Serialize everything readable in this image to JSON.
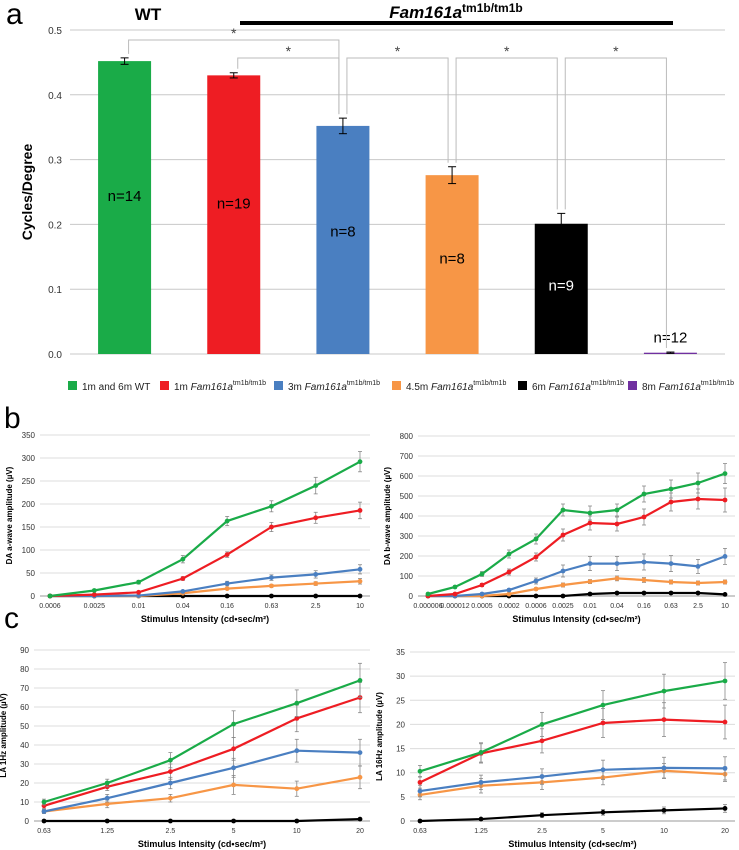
{
  "panel_labels": {
    "a": "a",
    "b": "b",
    "c": "c"
  },
  "header": {
    "wt": "WT",
    "mutant_gene": "Fam161a",
    "mutant_sup": "tm1b/tm1b"
  },
  "legend": [
    {
      "label": "1m and 6m WT",
      "sup": "",
      "gene": "",
      "color": "#1aab48"
    },
    {
      "label": "1m ",
      "gene": "Fam161a",
      "sup": "tm1b/tm1b",
      "color": "#ee1d23"
    },
    {
      "label": "3m ",
      "gene": "Fam161a",
      "sup": "tm1b/tm1b",
      "color": "#4a7fc1"
    },
    {
      "label": "4.5m ",
      "gene": "Fam161a",
      "sup": "tm1b/tm1b",
      "color": "#f79646"
    },
    {
      "label": "6m ",
      "gene": "Fam161a",
      "sup": "tm1b/tm1b",
      "color": "#000000"
    },
    {
      "label": "8m ",
      "gene": "Fam161a",
      "sup": "tm1b/tm1b",
      "color": "#7030a0"
    }
  ],
  "chart_data": [
    {
      "type": "bar",
      "ylabel": "Cycles/Degree",
      "ylim": [
        0,
        0.5
      ],
      "yticks": [
        "0.0",
        "0.1",
        "0.2",
        "0.3",
        "0.4",
        "0.5"
      ],
      "grid": true,
      "values": [
        0.452,
        0.43,
        0.352,
        0.276,
        0.201,
        0.002
      ],
      "errors": [
        0.005,
        0.004,
        0.012,
        0.013,
        0.016,
        0.001
      ],
      "n_labels": [
        "n=14",
        "n=19",
        "n=8",
        "n=8",
        "n=9",
        "n=12"
      ],
      "colors": [
        "#1aab48",
        "#ee1d23",
        "#4a7fc1",
        "#f79646",
        "#000000",
        "#7030a0"
      ],
      "significance": "*"
    },
    {
      "type": "line",
      "ylabel": "DA a-wave amplitude (µV)",
      "xlabel": "Stimulus Intensity (cd•sec/m²)",
      "x": [
        "0.0006",
        "0.0025",
        "0.01",
        "0.04",
        "0.16",
        "0.63",
        "2.5",
        "10"
      ],
      "ylim": [
        0,
        350
      ],
      "yticks": [
        "0",
        "50",
        "100",
        "150",
        "200",
        "250",
        "300",
        "350"
      ],
      "series": [
        {
          "color": "#1aab48",
          "values": [
            0,
            12,
            30,
            80,
            163,
            195,
            240,
            292
          ],
          "err": [
            0,
            2,
            4,
            8,
            10,
            12,
            18,
            22
          ]
        },
        {
          "color": "#ee1d23",
          "values": [
            0,
            3,
            8,
            38,
            90,
            150,
            170,
            186
          ],
          "err": [
            0,
            1,
            2,
            4,
            6,
            10,
            12,
            18
          ]
        },
        {
          "color": "#4a7fc1",
          "values": [
            0,
            0,
            1,
            10,
            27,
            40,
            47,
            58
          ],
          "err": [
            0,
            0,
            1,
            2,
            5,
            6,
            8,
            10
          ]
        },
        {
          "color": "#f79646",
          "values": [
            0,
            0,
            0,
            6,
            16,
            22,
            27,
            32
          ],
          "err": [
            0,
            0,
            0,
            1,
            2,
            3,
            4,
            6
          ]
        },
        {
          "color": "#000000",
          "values": [
            0,
            0,
            0,
            0,
            0,
            0,
            0,
            0
          ],
          "err": [
            0,
            0,
            0,
            0,
            0,
            0,
            0,
            0
          ]
        }
      ]
    },
    {
      "type": "line",
      "ylabel": "DA b-wave amplitude (µV)",
      "xlabel": "Stimulus Intensity (cd•sec/m²)",
      "x": [
        "0.000006",
        "0.000012",
        "0.0005",
        "0.0002",
        "0.0006",
        "0.0025",
        "0.01",
        "0.04",
        "0.16",
        "0.63",
        "2.5",
        "10"
      ],
      "ylim": [
        0,
        800
      ],
      "yticks": [
        "0",
        "100",
        "200",
        "300",
        "400",
        "500",
        "600",
        "700",
        "800"
      ],
      "series": [
        {
          "color": "#1aab48",
          "values": [
            10,
            45,
            110,
            210,
            285,
            430,
            415,
            430,
            510,
            535,
            565,
            612
          ],
          "err": [
            3,
            6,
            12,
            20,
            25,
            30,
            35,
            30,
            40,
            45,
            50,
            50
          ]
        },
        {
          "color": "#ee1d23",
          "values": [
            0,
            10,
            55,
            120,
            195,
            305,
            365,
            360,
            395,
            470,
            485,
            480
          ],
          "err": [
            0,
            3,
            8,
            15,
            20,
            30,
            35,
            35,
            40,
            45,
            50,
            60
          ]
        },
        {
          "color": "#4a7fc1",
          "values": [
            0,
            0,
            10,
            30,
            75,
            125,
            162,
            162,
            170,
            162,
            148,
            198
          ],
          "err": [
            0,
            0,
            3,
            6,
            15,
            30,
            35,
            35,
            40,
            40,
            35,
            40
          ]
        },
        {
          "color": "#f79646",
          "values": [
            0,
            0,
            0,
            10,
            35,
            55,
            72,
            88,
            80,
            70,
            65,
            70
          ],
          "err": [
            0,
            0,
            0,
            3,
            6,
            10,
            10,
            12,
            12,
            10,
            10,
            10
          ]
        },
        {
          "color": "#000000",
          "values": [
            0,
            0,
            0,
            0,
            0,
            0,
            10,
            15,
            15,
            15,
            15,
            8
          ],
          "err": [
            0,
            0,
            0,
            0,
            0,
            0,
            3,
            3,
            3,
            3,
            3,
            2
          ]
        }
      ]
    },
    {
      "type": "line",
      "ylabel": "LA 1Hz amplitude (µV)",
      "xlabel": "Stimulus Intensity (cd•sec/m²)",
      "x": [
        "0.63",
        "1.25",
        "2.5",
        "5",
        "10",
        "20"
      ],
      "ylim": [
        0,
        90
      ],
      "yticks": [
        "0",
        "10",
        "20",
        "30",
        "40",
        "50",
        "60",
        "70",
        "80",
        "90"
      ],
      "series": [
        {
          "color": "#1aab48",
          "values": [
            10,
            20,
            32,
            51,
            62,
            74
          ],
          "err": [
            1.5,
            2,
            4,
            7,
            7,
            9
          ]
        },
        {
          "color": "#ee1d23",
          "values": [
            8,
            18,
            26,
            38,
            54,
            65
          ],
          "err": [
            1.5,
            2,
            4,
            6,
            7,
            8
          ]
        },
        {
          "color": "#4a7fc1",
          "values": [
            5,
            12,
            20,
            28,
            37,
            36
          ],
          "err": [
            1,
            2,
            3,
            5,
            6,
            7
          ]
        },
        {
          "color": "#f79646",
          "values": [
            5,
            9,
            12,
            19,
            17,
            23
          ],
          "err": [
            1,
            2,
            2,
            5,
            4,
            6
          ]
        },
        {
          "color": "#000000",
          "values": [
            0,
            0,
            0,
            0,
            0,
            1
          ],
          "err": [
            0,
            0,
            0,
            0,
            0,
            0
          ]
        }
      ]
    },
    {
      "type": "line",
      "ylabel": "LA 16Hz amplitude (µV)",
      "xlabel": "Stimulus Intensity (cd•sec/m²)",
      "x": [
        "0.63",
        "1.25",
        "2.5",
        "5",
        "10",
        "20"
      ],
      "ylim": [
        0,
        35
      ],
      "yticks": [
        "0",
        "5",
        "10",
        "15",
        "20",
        "25",
        "30",
        "35"
      ],
      "series": [
        {
          "color": "#1aab48",
          "values": [
            10.3,
            14.2,
            20,
            24,
            26.9,
            29
          ],
          "err": [
            1.2,
            2,
            2.5,
            3,
            3.5,
            3.8
          ]
        },
        {
          "color": "#ee1d23",
          "values": [
            8,
            14,
            16.6,
            20.3,
            21,
            20.5
          ],
          "err": [
            1.2,
            2,
            2.5,
            3,
            3.5,
            3.5
          ]
        },
        {
          "color": "#4a7fc1",
          "values": [
            6.2,
            8,
            9.2,
            10.6,
            11,
            10.9
          ],
          "err": [
            1.2,
            1.5,
            1.6,
            2,
            2.2,
            2.4
          ]
        },
        {
          "color": "#f79646",
          "values": [
            5.4,
            7.3,
            8,
            9,
            10.4,
            9.7
          ],
          "err": [
            1,
            1.5,
            1.5,
            1.5,
            1.5,
            1.5
          ]
        },
        {
          "color": "#000000",
          "values": [
            0,
            0.4,
            1.2,
            1.8,
            2.2,
            2.6
          ],
          "err": [
            0,
            0.2,
            0.5,
            0.6,
            0.7,
            0.8
          ]
        }
      ]
    }
  ]
}
